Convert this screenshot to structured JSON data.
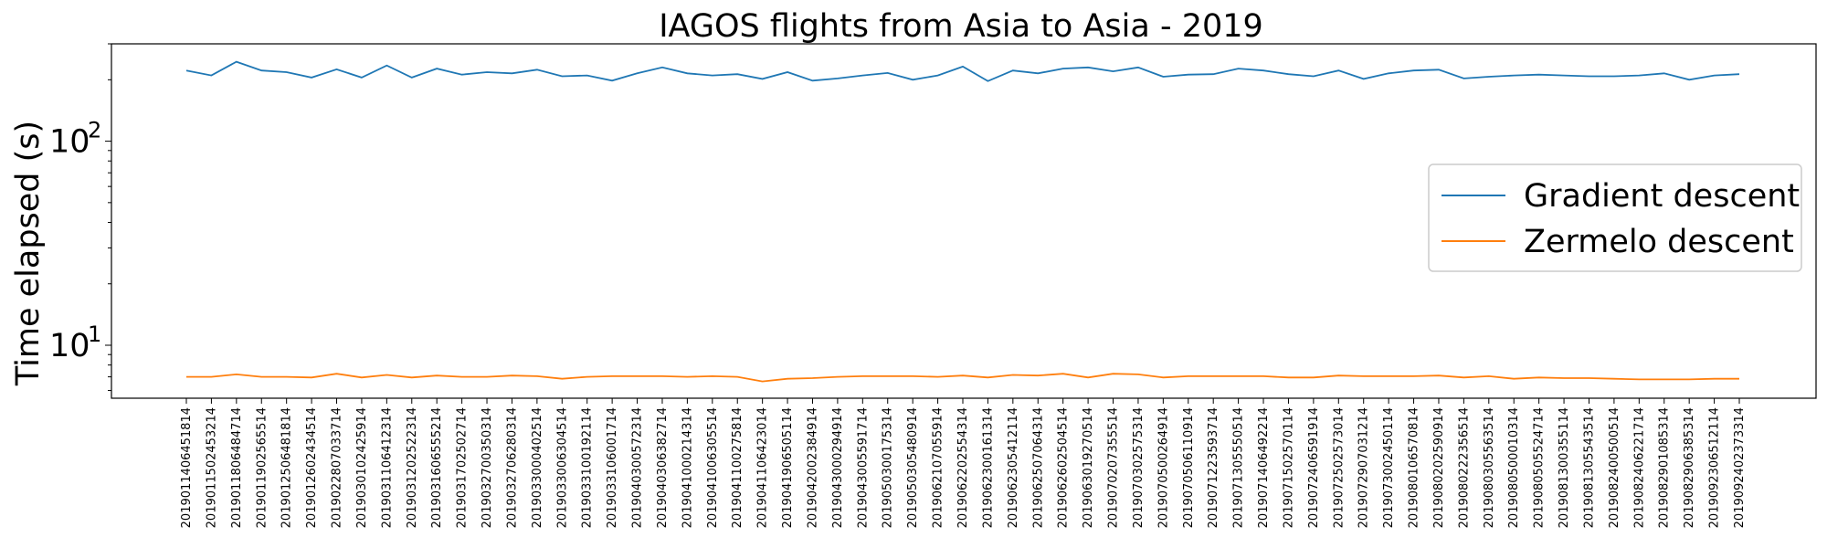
{
  "chart_data": {
    "type": "line",
    "title": "IAGOS flights from Asia to Asia - 2019",
    "xlabel": "",
    "ylabel": "Time elapsed (s)",
    "yscale": "log",
    "ylim": [
      5.5,
      300
    ],
    "yticks": [
      {
        "value": 10,
        "base": "10",
        "exp": "1"
      },
      {
        "value": 100,
        "base": "10",
        "exp": "2"
      }
    ],
    "grid": false,
    "legend_position": "center-right",
    "categories": [
      "2019011406451814",
      "2019011502453214",
      "2019011806484714",
      "2019011902565514",
      "2019012506481814",
      "2019012602434514",
      "2019022807033714",
      "2019030102425914",
      "2019031106412314",
      "2019031202522314",
      "2019031606555214",
      "2019031702502714",
      "2019032700350314",
      "2019032706280314",
      "2019033000402514",
      "2019033006304514",
      "2019033100192114",
      "2019033106001714",
      "2019040300572314",
      "2019040306382714",
      "2019041000214314",
      "2019041006305514",
      "2019041100275814",
      "2019041106423014",
      "2019041906505114",
      "2019042002384914",
      "2019043000294914",
      "2019043005591714",
      "2019050300175314",
      "2019050305480914",
      "2019062107055914",
      "2019062202554314",
      "2019062300161314",
      "2019062305412114",
      "2019062507064314",
      "2019062602504514",
      "2019063019270514",
      "2019070207355514",
      "2019070302575314",
      "2019070500264914",
      "2019070506110914",
      "2019071223593714",
      "2019071305550514",
      "2019071406492214",
      "2019071502570114",
      "2019072406591914",
      "2019072502573014",
      "2019072907031214",
      "2019073002450114",
      "2019080106570814",
      "2019080202590914",
      "2019080222356514",
      "2019080305563514",
      "2019080500010314",
      "2019080505524714",
      "2019081300355114",
      "2019081305543514",
      "2019082400500514",
      "2019082406221714",
      "2019082901085314",
      "2019082906385314",
      "2019092306512114",
      "2019092402373314"
    ],
    "series": [
      {
        "name": "Gradient descent",
        "color": "#1f77b4",
        "values": [
          222,
          210,
          245,
          222,
          218,
          205,
          225,
          205,
          235,
          205,
          227,
          212,
          218,
          215,
          224,
          208,
          210,
          198,
          215,
          230,
          215,
          210,
          213,
          202,
          218,
          198,
          203,
          210,
          216,
          200,
          210,
          232,
          197,
          222,
          215,
          227,
          230,
          220,
          230,
          207,
          212,
          213,
          227,
          222,
          213,
          208,
          222,
          202,
          215,
          222,
          224,
          203,
          207,
          210,
          212,
          210,
          208,
          208,
          210,
          215,
          200,
          210,
          213
        ]
      },
      {
        "name": "Zermelo descent",
        "color": "#ff7f0e",
        "values": [
          7.0,
          7.0,
          7.2,
          7.0,
          7.0,
          6.95,
          7.25,
          6.95,
          7.15,
          6.95,
          7.1,
          7.0,
          7.0,
          7.1,
          7.05,
          6.85,
          7.0,
          7.05,
          7.05,
          7.05,
          7.0,
          7.05,
          7.0,
          6.65,
          6.85,
          6.9,
          7.0,
          7.05,
          7.05,
          7.05,
          7.0,
          7.1,
          6.95,
          7.15,
          7.1,
          7.25,
          6.95,
          7.25,
          7.2,
          6.95,
          7.05,
          7.05,
          7.05,
          7.05,
          6.95,
          6.95,
          7.1,
          7.05,
          7.05,
          7.05,
          7.1,
          6.95,
          7.05,
          6.85,
          6.95,
          6.9,
          6.9,
          6.85,
          6.8,
          6.8,
          6.8,
          6.85,
          6.85
        ]
      }
    ]
  }
}
